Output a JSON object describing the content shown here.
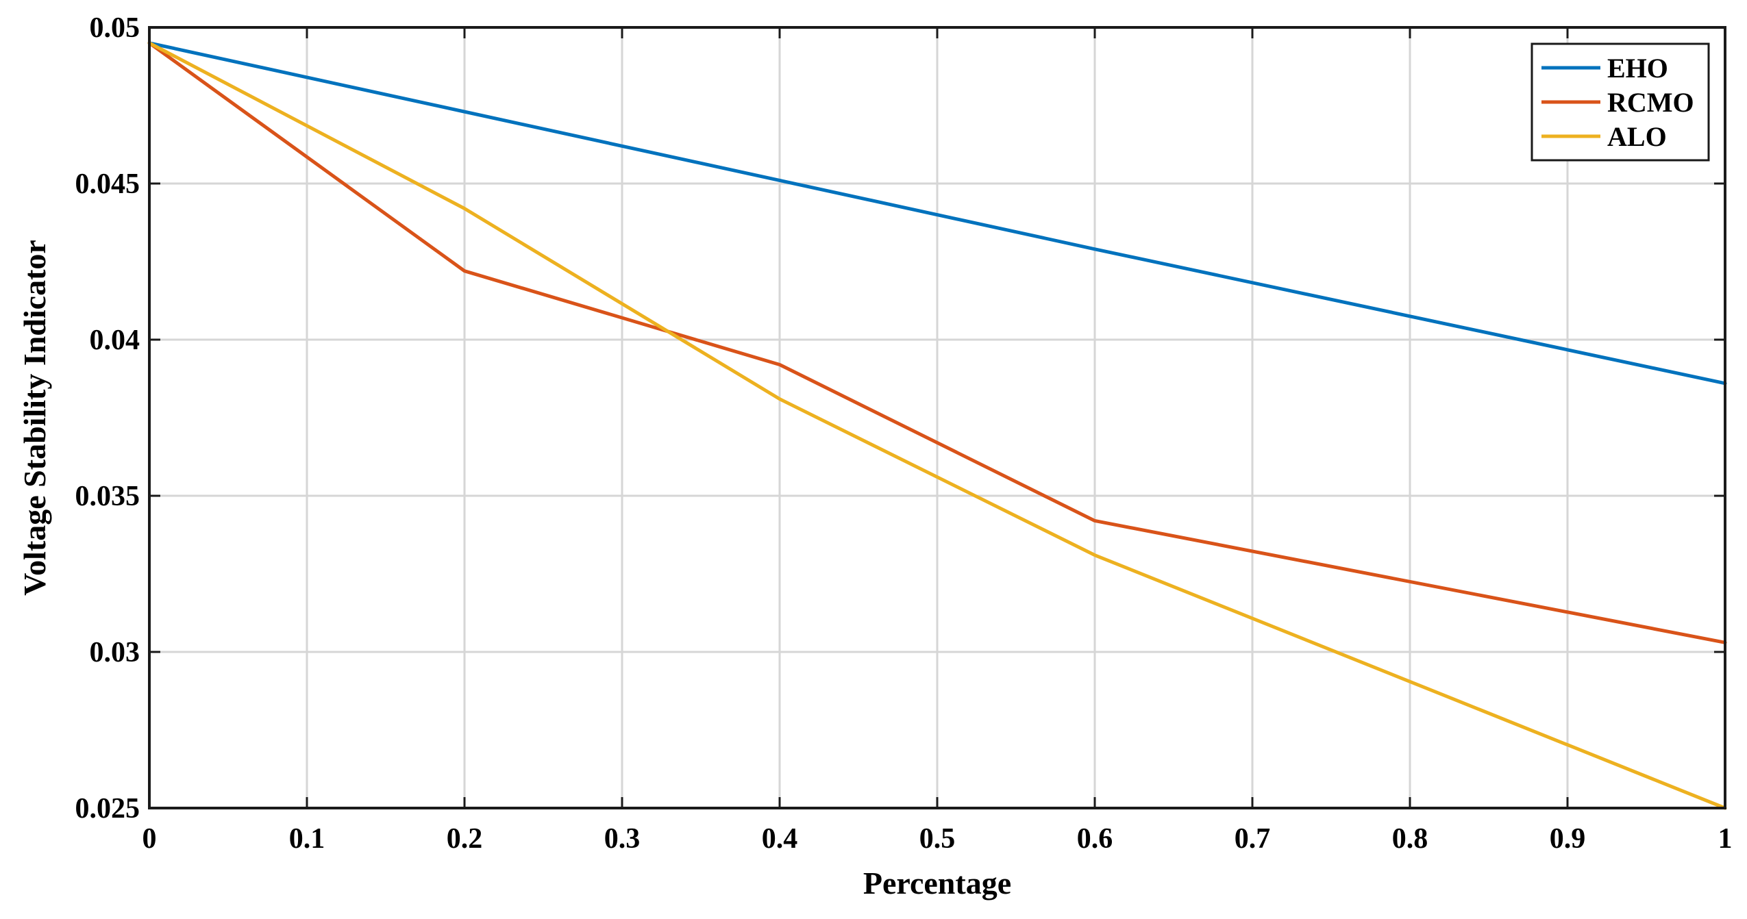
{
  "chart_data": {
    "type": "line",
    "title": "",
    "xlabel": "Percentage",
    "ylabel": "Voltage Stability Indicator",
    "xlim": [
      0,
      1
    ],
    "ylim": [
      0.025,
      0.05
    ],
    "x_ticks": [
      0,
      0.1,
      0.2,
      0.3,
      0.4,
      0.5,
      0.6,
      0.7,
      0.8,
      0.9,
      1
    ],
    "x_tick_labels": [
      "0",
      "0.1",
      "0.2",
      "0.3",
      "0.4",
      "0.5",
      "0.6",
      "0.7",
      "0.8",
      "0.9",
      "1"
    ],
    "y_ticks": [
      0.025,
      0.03,
      0.035,
      0.04,
      0.045,
      0.05
    ],
    "y_tick_labels": [
      "0.025",
      "0.03",
      "0.035",
      "0.04",
      "0.045",
      "0.05"
    ],
    "grid": true,
    "legend_position": "top-right",
    "x": [
      0,
      0.2,
      0.4,
      0.6,
      1
    ],
    "series": [
      {
        "name": "EHO",
        "color": "#0072BD",
        "values": [
          0.0495,
          0.0473,
          0.0451,
          0.0429,
          0.0386
        ]
      },
      {
        "name": "RCMO",
        "color": "#D95319",
        "values": [
          0.0495,
          0.0422,
          0.0392,
          0.0342,
          0.0303
        ]
      },
      {
        "name": "ALO",
        "color": "#EDB120",
        "values": [
          0.0495,
          0.0442,
          0.0381,
          0.0331,
          0.025
        ]
      }
    ]
  }
}
